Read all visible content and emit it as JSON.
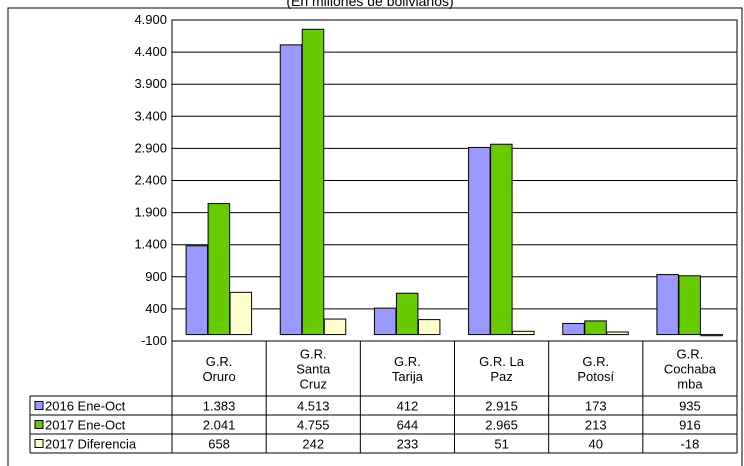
{
  "chart_data": {
    "type": "bar",
    "subtitle": "(En millones de bolivianos)",
    "categories": [
      [
        "G.R.",
        "Oruro"
      ],
      [
        "G.R.",
        "Santa",
        "Cruz"
      ],
      [
        "G.R.",
        "Tarija"
      ],
      [
        "G.R. La",
        "Paz"
      ],
      [
        "G.R.",
        "Potosí"
      ],
      [
        "G.R.",
        "Cochaba",
        "mba"
      ]
    ],
    "series": [
      {
        "name": "2016 Ene-Oct",
        "color": "#9999ff",
        "values": [
          1383,
          4513,
          412,
          2915,
          173,
          935
        ],
        "labels": [
          "1.383",
          "4.513",
          "412",
          "2.915",
          "173",
          "935"
        ]
      },
      {
        "name": "2017 Ene-Oct",
        "color": "#66cc00",
        "values": [
          2041,
          4755,
          644,
          2965,
          213,
          916
        ],
        "labels": [
          "2.041",
          "4.755",
          "644",
          "2.965",
          "213",
          "916"
        ]
      },
      {
        "name": "2017 Diferencia",
        "color": "#ffffcc",
        "values": [
          658,
          242,
          233,
          51,
          40,
          -18
        ],
        "labels": [
          "658",
          "242",
          "233",
          "51",
          "40",
          "-18"
        ]
      }
    ],
    "ylim": [
      -100,
      4900
    ],
    "yticks": [
      4900,
      4400,
      3900,
      3400,
      2900,
      2400,
      1900,
      1400,
      900,
      400,
      -100
    ],
    "ytick_labels": [
      "4.900",
      "4.400",
      "3.900",
      "3.400",
      "2.900",
      "2.400",
      "1.900",
      "1.400",
      "900",
      "400",
      "-100"
    ],
    "grid": true,
    "legend": "data-table"
  }
}
